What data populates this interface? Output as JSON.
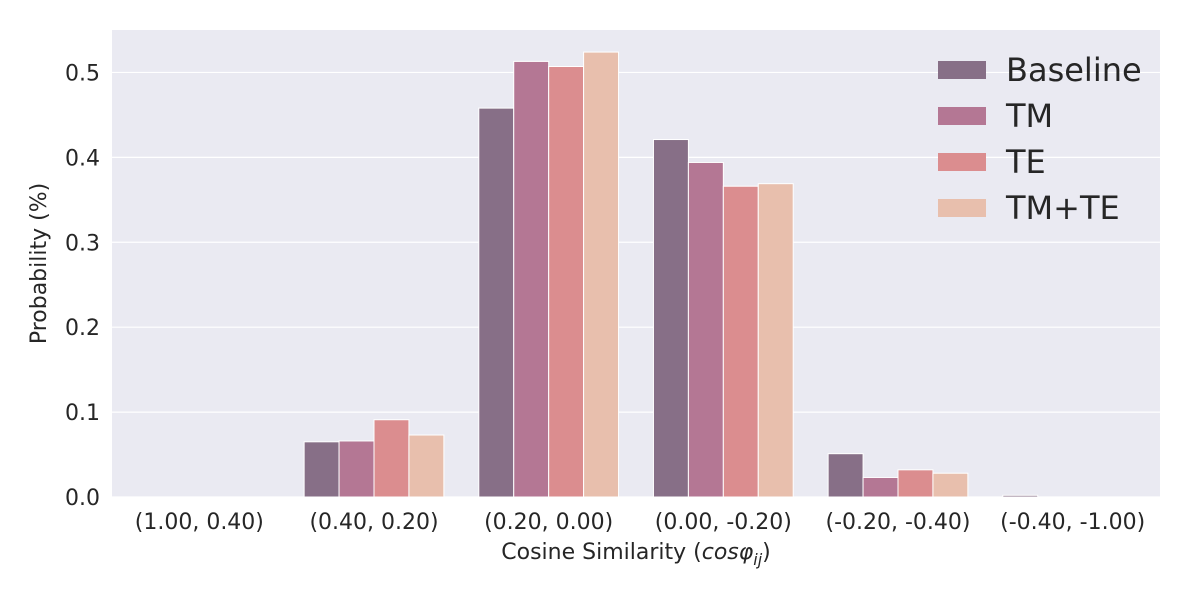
{
  "chart_data": {
    "type": "bar",
    "title": "",
    "xlabel": "Cosine Similarity (",
    "xlabel_math": "cosφ",
    "xlabel_sub": "ij",
    "xlabel_end": ")",
    "ylabel": "Probability (%)",
    "categories": [
      "(1.00, 0.40)",
      "(0.40, 0.20)",
      "(0.20, 0.00)",
      "(0.00, -0.20)",
      "(-0.20, -0.40)",
      "(-0.40, -1.00)"
    ],
    "ylim": [
      0,
      0.55
    ],
    "yticks": [
      "0.0",
      "0.1",
      "0.2",
      "0.3",
      "0.4",
      "0.5"
    ],
    "grid": true,
    "legend_position": "top-right",
    "series": [
      {
        "name": "Baseline",
        "color": "#876f87",
        "values": [
          0.0,
          0.065,
          0.458,
          0.421,
          0.051,
          0.002
        ]
      },
      {
        "name": "TM",
        "color": "#b47794",
        "values": [
          0.0,
          0.066,
          0.513,
          0.394,
          0.023,
          0.0
        ]
      },
      {
        "name": "TE",
        "color": "#db8d8f",
        "values": [
          0.0,
          0.091,
          0.507,
          0.366,
          0.032,
          0.0
        ]
      },
      {
        "name": "TM+TE",
        "color": "#e8bfad",
        "values": [
          0.0,
          0.073,
          0.524,
          0.369,
          0.028,
          0.0
        ]
      }
    ],
    "colors": {
      "plot_background": "#eaeaf2",
      "grid": "#ffffff",
      "text": "#262626"
    }
  }
}
